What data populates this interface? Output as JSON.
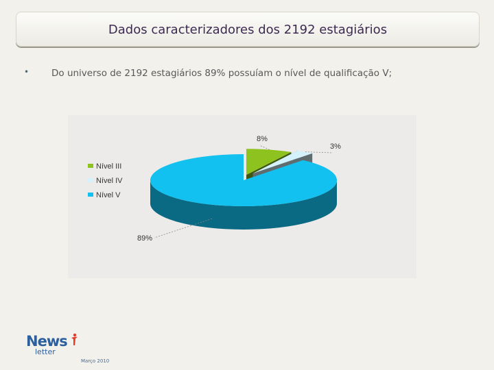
{
  "slide": {
    "title": "Dados caracterizadores dos 2192 estagiários",
    "bullet": "Do universo de 2192 estagiários 89% possuíam o nível de qualificação V;",
    "date": "Março 2010"
  },
  "logo": {
    "name": "News",
    "sub": "letter"
  },
  "chart_data": {
    "type": "pie",
    "categories": [
      "Nível III",
      "Nível IV",
      "Nível V"
    ],
    "values": [
      8,
      3,
      89
    ],
    "labels": [
      "8%",
      "3%",
      "89%"
    ],
    "colors": [
      "#8dc21f",
      "#d4f2fb",
      "#12c1ef"
    ],
    "legend_position": "left",
    "style": "3d-exploded"
  }
}
